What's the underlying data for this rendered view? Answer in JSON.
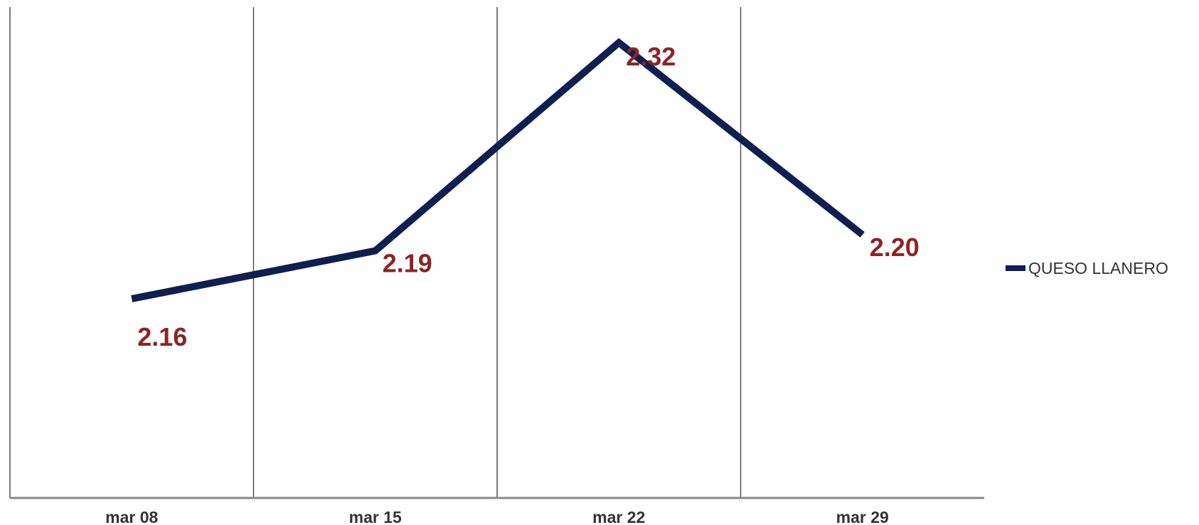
{
  "chart_data": {
    "type": "line",
    "title": "",
    "xlabel": "",
    "ylabel": "",
    "categories": [
      "mar 08",
      "mar 15",
      "mar 22",
      "mar 29"
    ],
    "series": [
      {
        "name": "QUESO LLANERO",
        "values": [
          2.16,
          2.19,
          2.32,
          2.2
        ],
        "labels": [
          "2.16",
          "2.19",
          "2.32",
          "2.20"
        ]
      }
    ],
    "grid": "vertical",
    "legend": "right",
    "line_color": "#0f1f4f",
    "label_color": "#8b2525",
    "axis_color": "#888888",
    "grid_color": "#555555"
  }
}
